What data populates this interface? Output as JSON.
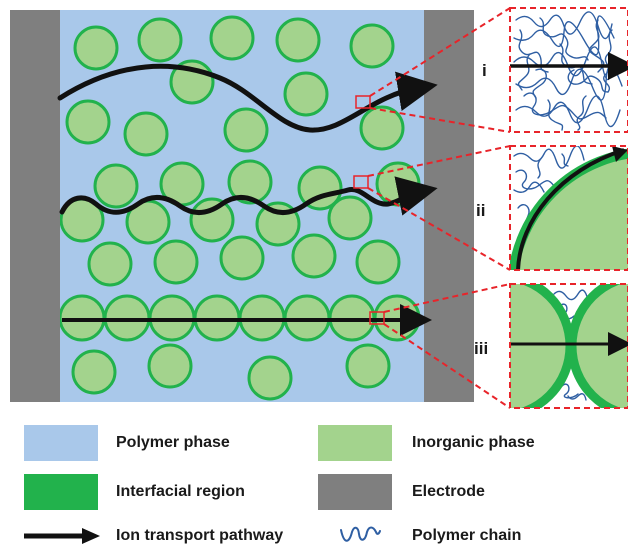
{
  "colors": {
    "polymer_phase": "#a9c8ea",
    "inorganic_phase": "#a3d38d",
    "interfacial_region": "#22b24c",
    "electrode": "#7f7f7f",
    "pathway": "#111111",
    "polymer_chain": "#2f5fa3",
    "zoom_line": "#e8242a"
  },
  "insets": [
    {
      "label": "i"
    },
    {
      "label": "ii"
    },
    {
      "label": "iii"
    }
  ],
  "legend": {
    "polymer_phase": "Polymer phase",
    "inorganic_phase": "Inorganic phase",
    "interfacial_region": "Interfacial region",
    "electrode": "Electrode",
    "ion_transport_pathway": "Ion transport pathway",
    "polymer_chain": "Polymer chain"
  }
}
